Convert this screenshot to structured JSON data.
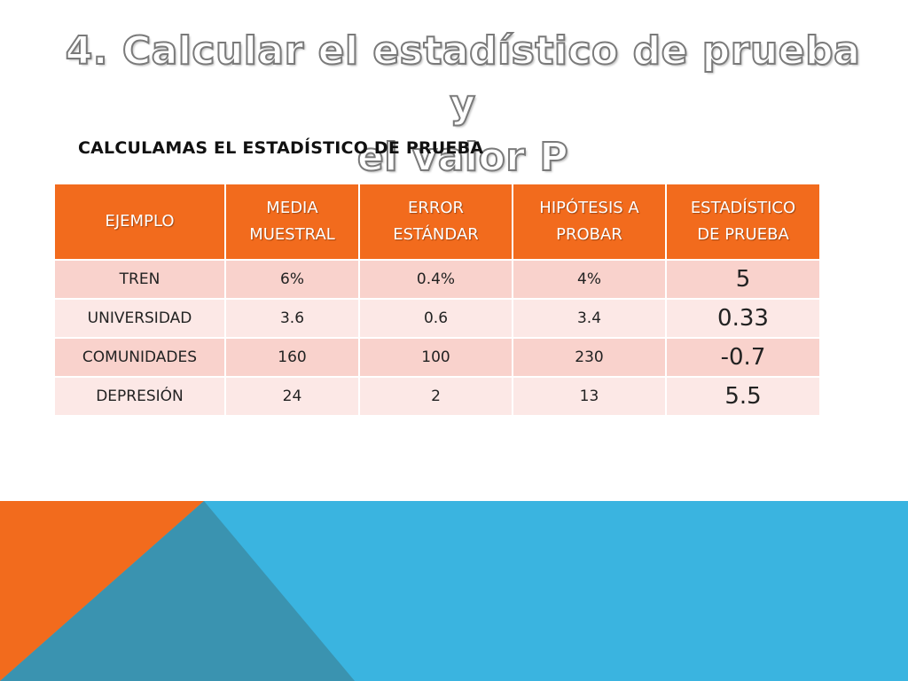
{
  "title": {
    "line1": "4. Calcular el estadístico de prueba y",
    "line2": "el valor P"
  },
  "subtitle": "CALCULAMAS EL ESTADÍSTICO DE PRUEBA",
  "table": {
    "headers": {
      "ejemplo": "EJEMPLO",
      "media_1": "MEDIA",
      "media_2": "MUESTRAL",
      "error_1": "ERROR",
      "error_2": "ESTÁNDAR",
      "hipotesis_1": "HIPÓTESIS A",
      "hipotesis_2": "PROBAR",
      "estadistico_1": "ESTADÍSTICO",
      "estadistico_2": "DE PRUEBA"
    },
    "rows": [
      {
        "ejemplo": "TREN",
        "media": "6%",
        "error": "0.4%",
        "hipotesis": "4%",
        "estadistico": "5"
      },
      {
        "ejemplo": "UNIVERSIDAD",
        "media": "3.6",
        "error": "0.6",
        "hipotesis": "3.4",
        "estadistico": "0.33"
      },
      {
        "ejemplo": "COMUNIDADES",
        "media": "160",
        "error": "100",
        "hipotesis": "230",
        "estadistico": "-0.7"
      },
      {
        "ejemplo": "DEPRESIÓN",
        "media": "24",
        "error": "2",
        "hipotesis": "13",
        "estadistico": "5.5"
      }
    ]
  },
  "colors": {
    "orange": "#f26b1d",
    "blue": "#3ab4e0",
    "overlap": "#3a93b0",
    "row_odd": "#f9d2cc",
    "row_even": "#fce8e6"
  }
}
